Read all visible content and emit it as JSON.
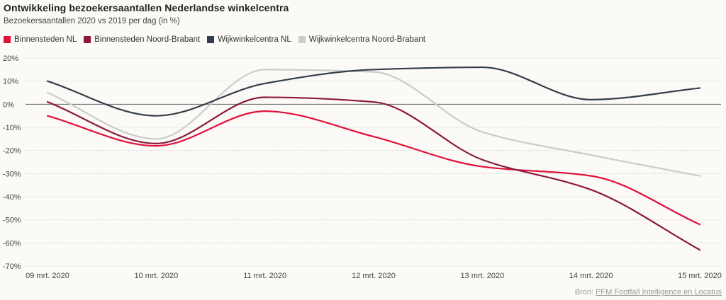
{
  "header": {
    "title": "Ontwikkeling bezoekersaantallen Nederlandse winkelcentra",
    "subtitle": "Bezoekersaantallen 2020 vs 2019 per dag (in %)"
  },
  "source": {
    "prefix": "Bron: ",
    "link_text": "PFM Footfall Intelligence en Locatus"
  },
  "chart_data": {
    "type": "line",
    "x": [
      "09 mrt. 2020",
      "10 mrt. 2020",
      "11 mrt. 2020",
      "12 mrt. 2020",
      "13 mrt. 2020",
      "14 mrt. 2020",
      "15 mrt. 2020"
    ],
    "ylim": [
      -70,
      20
    ],
    "yticks": [
      20,
      10,
      0,
      -10,
      -20,
      -30,
      -40,
      -50,
      -60,
      -70
    ],
    "ytick_labels": [
      "20%",
      "10%",
      "0%",
      "-10%",
      "-20%",
      "-30%",
      "-40%",
      "-50%",
      "-60%",
      "-70%"
    ],
    "grid": true,
    "legend_position": "top-left",
    "series": [
      {
        "name": "Binnensteden NL",
        "color": "#e0103a",
        "values": [
          -5,
          -18,
          -3,
          -14,
          -27,
          -31,
          -52
        ]
      },
      {
        "name": "Binnensteden Noord-Brabant",
        "color": "#8b1a3e",
        "values": [
          1,
          -17,
          3,
          1,
          -24,
          -37,
          -63
        ]
      },
      {
        "name": "Wijkwinkelcentra NL",
        "color": "#343d4a",
        "values": [
          10,
          -5,
          9,
          15,
          16,
          2,
          7
        ]
      },
      {
        "name": "Wijkwinkelcentra Noord-Brabant",
        "color": "#cbcbcb",
        "values": [
          5,
          -15,
          15,
          14,
          -12,
          -22,
          -31
        ]
      }
    ]
  }
}
